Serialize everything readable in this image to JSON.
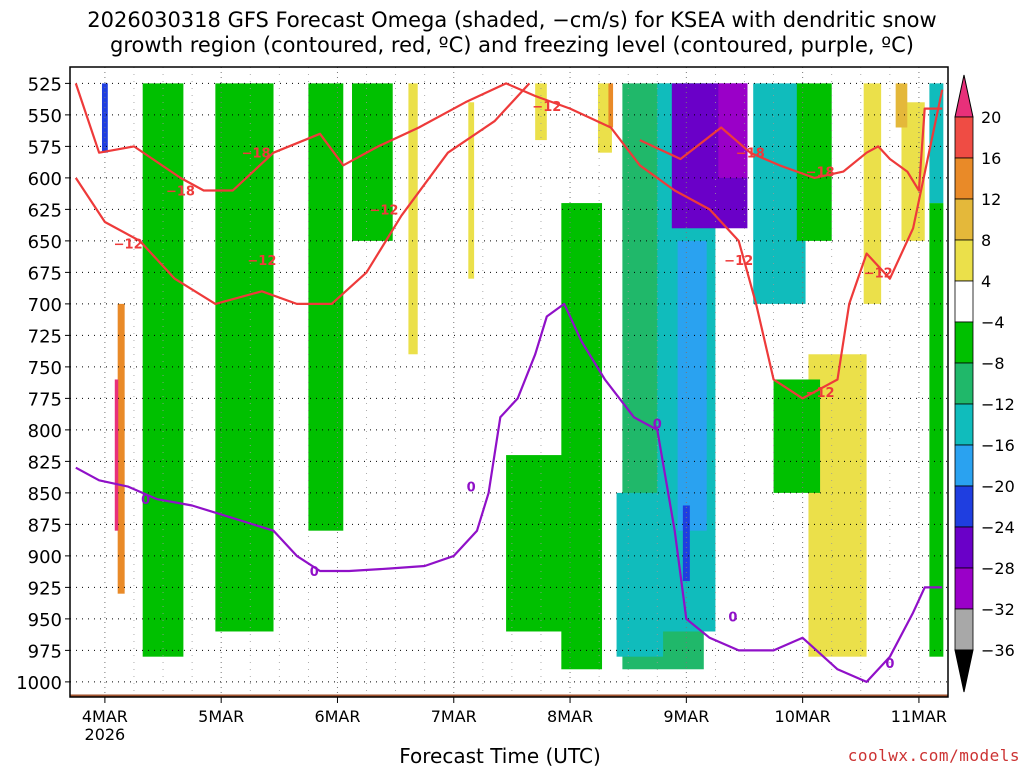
{
  "chart_data": {
    "type": "heatmap",
    "title_line1": "2026030318 GFS Forecast Omega (shaded, −cm/s) for KSEA with dendritic snow",
    "title_line2": "growth region (contoured, red, ºC) and freezing level (contoured, purple, ºC)",
    "xlabel": "Forecast Time (UTC)",
    "ylabel": "",
    "credit": "coolwx.com/models",
    "x_ticks": [
      "4MAR",
      "5MAR",
      "6MAR",
      "7MAR",
      "8MAR",
      "9MAR",
      "10MAR",
      "11MAR"
    ],
    "x_sub": "2026",
    "x_range_days": [
      3.7,
      11.25
    ],
    "y_ticks": [
      525,
      550,
      575,
      600,
      625,
      650,
      675,
      700,
      725,
      750,
      775,
      800,
      825,
      850,
      875,
      900,
      925,
      950,
      975,
      1000
    ],
    "y_range": [
      512,
      1012
    ],
    "colorbar": {
      "levels": [
        -36,
        -32,
        -28,
        -24,
        -20,
        -16,
        -12,
        -8,
        -4,
        4,
        8,
        12,
        16,
        20
      ],
      "tick_labels": [
        "20",
        "16",
        "12",
        "8",
        "4",
        "−4",
        "−8",
        "−12",
        "−16",
        "−20",
        "−24",
        "−28",
        "−32",
        "−36"
      ],
      "colors": [
        "#ffffff",
        "#ebe04a",
        "#e4b83a",
        "#e98a28",
        "#ef4c44",
        "#e8307a",
        "#00c000",
        "#20b86a",
        "#10bcbc",
        "#2aa2f0",
        "#1f3ee0",
        "#6a00c8",
        "#9a00c8",
        "#a8a8a8",
        "#000000"
      ]
    },
    "omega_patches": [
      {
        "x": 4.14,
        "p0": 700,
        "p1": 930,
        "w": 0.06,
        "v": 12
      },
      {
        "x": 4.1,
        "p0": 760,
        "p1": 880,
        "w": 0.03,
        "v": 20
      },
      {
        "x": 4.0,
        "p0": 525,
        "p1": 580,
        "w": 0.05,
        "v": -20
      },
      {
        "x": 6.65,
        "p0": 525,
        "p1": 740,
        "w": 0.08,
        "v": 4
      },
      {
        "x": 7.15,
        "p0": 540,
        "p1": 680,
        "w": 0.05,
        "v": 4
      },
      {
        "x": 7.75,
        "p0": 525,
        "p1": 570,
        "w": 0.1,
        "v": 4
      },
      {
        "x": 8.3,
        "p0": 525,
        "p1": 580,
        "w": 0.12,
        "v": 4
      },
      {
        "x": 8.35,
        "p0": 525,
        "p1": 560,
        "w": 0.04,
        "v": 12
      },
      {
        "x": 10.3,
        "p0": 740,
        "p1": 980,
        "w": 0.5,
        "v": 4
      },
      {
        "x": 10.6,
        "p0": 525,
        "p1": 700,
        "w": 0.15,
        "v": 4
      },
      {
        "x": 10.95,
        "p0": 540,
        "p1": 650,
        "w": 0.2,
        "v": 4
      },
      {
        "x": 10.85,
        "p0": 525,
        "p1": 560,
        "w": 0.1,
        "v": 8
      },
      {
        "x": 4.5,
        "p0": 525,
        "p1": 980,
        "w": 0.35,
        "v": -6
      },
      {
        "x": 5.2,
        "p0": 525,
        "p1": 960,
        "w": 0.5,
        "v": -6
      },
      {
        "x": 5.9,
        "p0": 525,
        "p1": 880,
        "w": 0.3,
        "v": -6
      },
      {
        "x": 6.3,
        "p0": 525,
        "p1": 650,
        "w": 0.35,
        "v": -6
      },
      {
        "x": 7.7,
        "p0": 820,
        "p1": 960,
        "w": 0.5,
        "v": -6
      },
      {
        "x": 8.1,
        "p0": 620,
        "p1": 990,
        "w": 0.35,
        "v": -6
      },
      {
        "x": 8.8,
        "p0": 525,
        "p1": 990,
        "w": 0.7,
        "v": -8
      },
      {
        "x": 8.6,
        "p0": 850,
        "p1": 980,
        "w": 0.4,
        "v": -12
      },
      {
        "x": 9.0,
        "p0": 525,
        "p1": 960,
        "w": 0.5,
        "v": -14
      },
      {
        "x": 9.05,
        "p0": 650,
        "p1": 880,
        "w": 0.25,
        "v": -18
      },
      {
        "x": 9.0,
        "p0": 860,
        "p1": 920,
        "w": 0.06,
        "v": -22
      },
      {
        "x": 9.2,
        "p0": 525,
        "p1": 640,
        "w": 0.65,
        "v": -26
      },
      {
        "x": 9.4,
        "p0": 525,
        "p1": 600,
        "w": 0.25,
        "v": -30
      },
      {
        "x": 9.8,
        "p0": 525,
        "p1": 700,
        "w": 0.45,
        "v": -12
      },
      {
        "x": 10.1,
        "p0": 525,
        "p1": 650,
        "w": 0.3,
        "v": -6
      },
      {
        "x": 9.95,
        "p0": 760,
        "p1": 850,
        "w": 0.4,
        "v": -6
      },
      {
        "x": 11.15,
        "p0": 620,
        "p1": 980,
        "w": 0.12,
        "v": -6
      },
      {
        "x": 11.15,
        "p0": 525,
        "p1": 620,
        "w": 0.12,
        "v": -12
      }
    ],
    "contour_dgz_minus12_upper": [
      [
        3.75,
        525
      ],
      [
        3.95,
        580
      ],
      [
        4.25,
        575
      ],
      [
        4.65,
        600
      ],
      [
        4.85,
        610
      ],
      [
        5.1,
        610
      ],
      [
        5.45,
        580
      ],
      [
        5.85,
        565
      ],
      [
        6.05,
        590
      ],
      [
        6.35,
        575
      ],
      [
        6.7,
        560
      ],
      [
        7.1,
        540
      ],
      [
        7.45,
        525
      ],
      [
        7.7,
        535
      ],
      [
        8.0,
        545
      ],
      [
        8.35,
        560
      ],
      [
        8.6,
        590
      ],
      [
        8.9,
        610
      ],
      [
        9.2,
        625
      ],
      [
        9.45,
        650
      ],
      [
        9.6,
        700
      ],
      [
        9.75,
        760
      ],
      [
        10.0,
        775
      ],
      [
        10.3,
        760
      ],
      [
        10.4,
        700
      ],
      [
        10.55,
        660
      ],
      [
        10.75,
        680
      ],
      [
        10.95,
        640
      ],
      [
        11.2,
        530
      ]
    ],
    "contour_dgz_minus12_lower": [
      [
        3.75,
        600
      ],
      [
        4.0,
        635
      ],
      [
        4.3,
        650
      ],
      [
        4.6,
        680
      ],
      [
        4.95,
        700
      ],
      [
        5.35,
        690
      ],
      [
        5.65,
        700
      ],
      [
        5.95,
        700
      ],
      [
        6.25,
        675
      ],
      [
        6.55,
        630
      ],
      [
        6.95,
        580
      ],
      [
        7.35,
        555
      ],
      [
        7.65,
        525
      ]
    ],
    "contour_dgz_minus18": [
      [
        8.6,
        570
      ],
      [
        8.95,
        585
      ],
      [
        9.3,
        560
      ],
      [
        9.55,
        580
      ],
      [
        9.8,
        590
      ],
      [
        10.1,
        600
      ],
      [
        10.35,
        595
      ],
      [
        10.55,
        580
      ],
      [
        10.65,
        575
      ],
      [
        10.75,
        585
      ],
      [
        10.9,
        595
      ],
      [
        11.0,
        610
      ],
      [
        11.05,
        545
      ],
      [
        11.2,
        545
      ]
    ],
    "contour_freezing": [
      [
        3.75,
        830
      ],
      [
        3.95,
        840
      ],
      [
        4.2,
        845
      ],
      [
        4.45,
        855
      ],
      [
        4.75,
        860
      ],
      [
        5.1,
        870
      ],
      [
        5.45,
        880
      ],
      [
        5.65,
        900
      ],
      [
        5.85,
        912
      ],
      [
        6.1,
        912
      ],
      [
        6.45,
        910
      ],
      [
        6.75,
        908
      ],
      [
        7.0,
        900
      ],
      [
        7.2,
        880
      ],
      [
        7.3,
        850
      ],
      [
        7.4,
        790
      ],
      [
        7.55,
        775
      ],
      [
        7.7,
        740
      ],
      [
        7.8,
        710
      ],
      [
        7.95,
        700
      ],
      [
        8.1,
        730
      ],
      [
        8.3,
        760
      ],
      [
        8.55,
        790
      ],
      [
        8.75,
        800
      ],
      [
        8.9,
        880
      ],
      [
        9.0,
        950
      ],
      [
        9.2,
        965
      ],
      [
        9.45,
        975
      ],
      [
        9.75,
        975
      ],
      [
        10.0,
        965
      ],
      [
        10.3,
        990
      ],
      [
        10.55,
        1000
      ],
      [
        10.75,
        980
      ],
      [
        10.95,
        945
      ],
      [
        11.05,
        925
      ],
      [
        11.2,
        925
      ]
    ],
    "contour_labels": [
      {
        "text": "−12",
        "x": 7.8,
        "p": 543
      },
      {
        "text": "−18",
        "x": 5.3,
        "p": 580
      },
      {
        "text": "−18",
        "x": 4.65,
        "p": 610
      },
      {
        "text": "−18",
        "x": 9.55,
        "p": 580
      },
      {
        "text": "−18",
        "x": 10.15,
        "p": 595
      },
      {
        "text": "−12",
        "x": 6.4,
        "p": 625
      },
      {
        "text": "−12",
        "x": 4.2,
        "p": 652
      },
      {
        "text": "−12",
        "x": 5.35,
        "p": 665
      },
      {
        "text": "−12",
        "x": 9.45,
        "p": 665
      },
      {
        "text": "−12",
        "x": 10.65,
        "p": 675
      },
      {
        "text": "−12",
        "x": 10.15,
        "p": 770
      },
      {
        "text": "0",
        "x": 4.35,
        "p": 855
      },
      {
        "text": "0",
        "x": 7.15,
        "p": 845
      },
      {
        "text": "0",
        "x": 8.75,
        "p": 795
      },
      {
        "text": "0",
        "x": 5.8,
        "p": 912
      },
      {
        "text": "0",
        "x": 9.4,
        "p": 948
      },
      {
        "text": "0",
        "x": 10.75,
        "p": 985
      }
    ],
    "terrain_pressure": 1010
  }
}
